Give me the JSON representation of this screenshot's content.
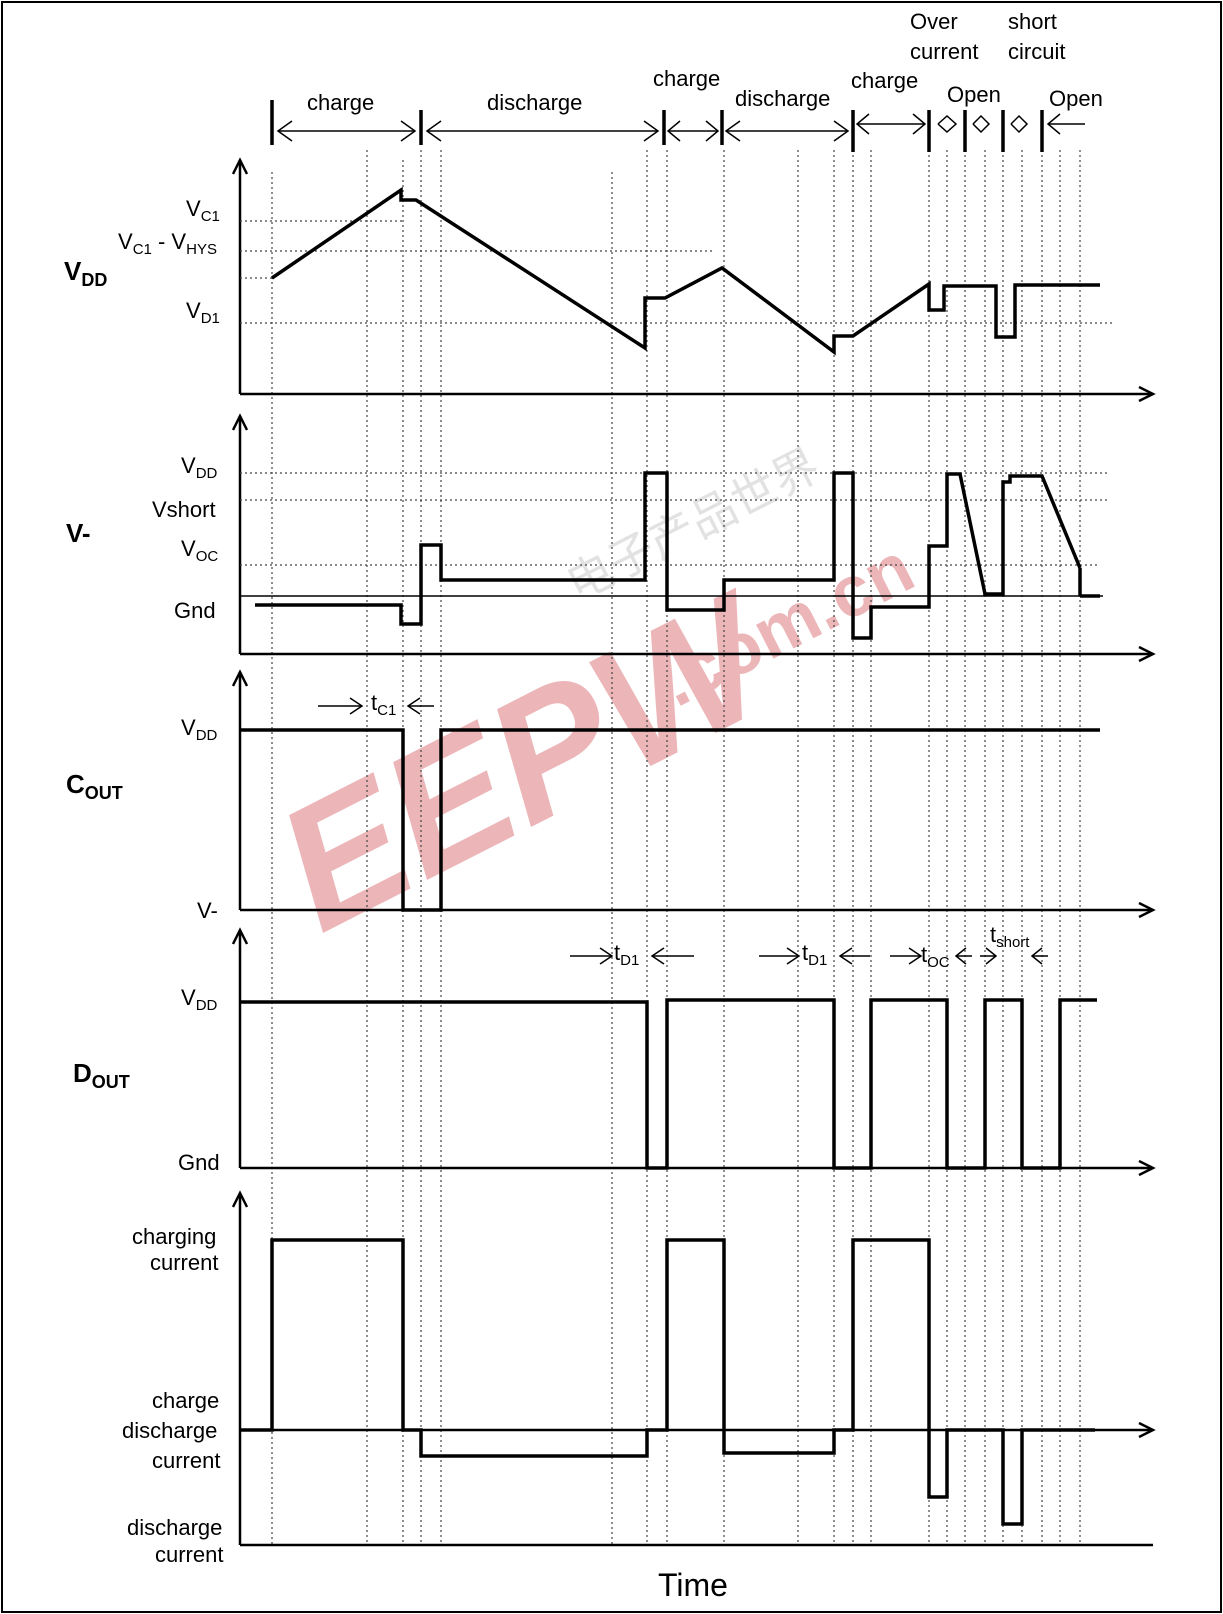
{
  "phases": {
    "charge1": "charge",
    "discharge1": "discharge",
    "charge2": "charge",
    "discharge2": "discharge",
    "charge3": "charge",
    "overcurrent_1": "Over",
    "overcurrent_2": "current",
    "shortcircuit_1": "short",
    "shortcircuit_2": "circuit",
    "open1": "Open",
    "open2": "Open"
  },
  "panels": {
    "vdd": {
      "title": "V",
      "title_sub": "DD",
      "levels": [
        {
          "main": "V",
          "sub": "C1"
        },
        {
          "main": "V",
          "sub": "C1",
          "mid": " - V",
          "sub2": "HYS"
        },
        {
          "main": "V",
          "sub": "D1"
        }
      ]
    },
    "vminus": {
      "title": "V-",
      "levels": [
        {
          "main": "V",
          "sub": "DD"
        },
        {
          "main": "Vshort"
        },
        {
          "main": "V",
          "sub": "OC"
        },
        {
          "main": "Gnd"
        }
      ]
    },
    "cout": {
      "title": "C",
      "title_sub": "OUT",
      "levels": [
        {
          "main": "V",
          "sub": "DD"
        },
        {
          "main": "V-"
        }
      ],
      "timing": {
        "main": "t",
        "sub": "C1"
      }
    },
    "dout": {
      "title": "D",
      "title_sub": "OUT",
      "levels": [
        {
          "main": "V",
          "sub": "DD"
        },
        {
          "main": "Gnd"
        }
      ],
      "timings": [
        {
          "main": "t",
          "sub": "D1"
        },
        {
          "main": "t",
          "sub": "D1"
        },
        {
          "main": "t",
          "sub": "OC"
        },
        {
          "main": "t",
          "sub": "short"
        }
      ]
    },
    "current": {
      "levels": [
        {
          "line1": "charging",
          "line2": "current"
        },
        {
          "line1": "charge",
          "line2": "discharge",
          "line3": "current"
        },
        {
          "line1": "discharge",
          "line2": "current"
        }
      ]
    }
  },
  "xaxis_label": "Time",
  "watermark": {
    "logo": "EEPW",
    "site": ".com.cn",
    "cjk": "电子产品世界",
    "color": "#e0868c"
  }
}
